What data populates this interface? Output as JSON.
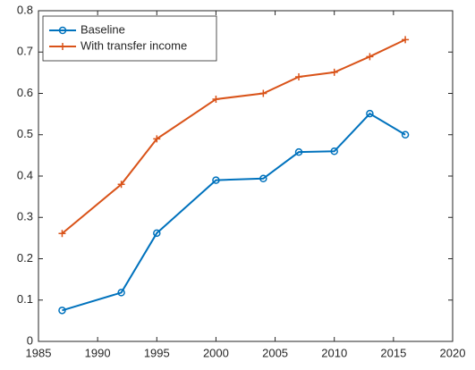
{
  "chart_data": {
    "type": "line",
    "x": [
      1987,
      1992,
      1995,
      2000,
      2004,
      2007,
      2010,
      2013,
      2016
    ],
    "series": [
      {
        "name": "Baseline",
        "color": "#0072BD",
        "marker": "circle",
        "values": [
          0.075,
          0.118,
          0.262,
          0.39,
          0.394,
          0.458,
          0.46,
          0.551,
          0.5
        ]
      },
      {
        "name": "With transfer income",
        "color": "#D95319",
        "marker": "plus",
        "values": [
          0.261,
          0.38,
          0.49,
          0.586,
          0.6,
          0.64,
          0.651,
          0.689,
          0.73
        ]
      }
    ],
    "xlim": [
      1985,
      2020
    ],
    "xticks": [
      1985,
      1990,
      1995,
      2000,
      2005,
      2010,
      2015,
      2020
    ],
    "ylim": [
      0,
      0.8
    ],
    "yticks": [
      0,
      0.1,
      0.2,
      0.3,
      0.4,
      0.5,
      0.6,
      0.7,
      0.8
    ],
    "grid": false,
    "legend": "northwest"
  }
}
